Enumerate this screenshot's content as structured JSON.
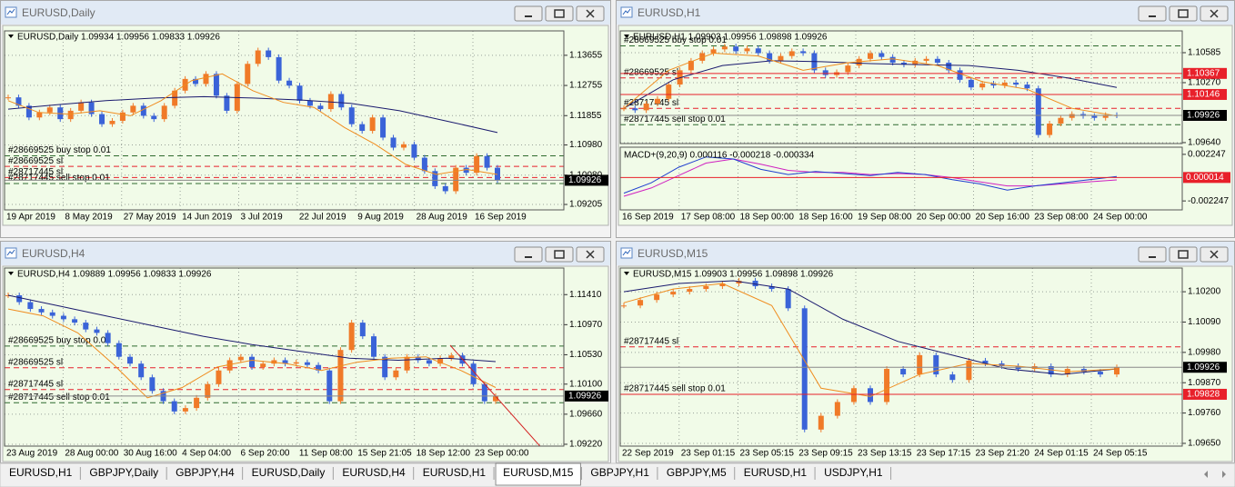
{
  "windows": [
    {
      "title": "EURUSD,Daily",
      "ohlc_label": "EURUSD,Daily  1.09934 1.09956 1.09833 1.09926",
      "up_color": "#f07a28",
      "down_color": "#3a63d8",
      "ylim": [
        1.09043,
        1.14383
      ],
      "yticks": [
        1.13655,
        1.12755,
        1.11855,
        {
          "value": 1.1098,
          "label": "1.10980"
        },
        {
          "value": 1.1008,
          "label": "1.10080"
        },
        1.09205
      ],
      "xticks": [
        "19 Apr 2019",
        "8 May 2019",
        "27 May 2019",
        "14 Jun 2019",
        "3 Jul 2019",
        "22 Jul 2019",
        "9 Aug 2019",
        "28 Aug 2019",
        "16 Sep 2019"
      ],
      "closes": [
        1.124,
        1.1215,
        1.118,
        1.1195,
        1.121,
        1.1175,
        1.12,
        1.1225,
        1.119,
        1.116,
        1.117,
        1.1195,
        1.1215,
        1.1185,
        1.1175,
        1.1215,
        1.126,
        1.1295,
        1.128,
        1.131,
        1.1245,
        1.12,
        1.128,
        1.134,
        1.138,
        1.136,
        1.129,
        1.1275,
        1.123,
        1.1215,
        1.1205,
        1.125,
        1.121,
        1.116,
        1.114,
        1.118,
        1.112,
        1.109,
        1.11,
        1.106,
        1.102,
        1.0975,
        1.096,
        1.103,
        1.1015,
        1.1065,
        1.103,
        1.09926
      ],
      "ma_fast": [
        1.123,
        1.1195,
        1.119,
        1.12,
        1.1185,
        1.123,
        1.129,
        1.131,
        1.126,
        1.1225,
        1.121,
        1.115,
        1.11,
        1.104,
        1.101,
        1.1025,
        1.101
      ],
      "ma_slow": [
        1.1205,
        1.1218,
        1.123,
        1.1238,
        1.1242,
        1.1238,
        1.1232,
        1.1222,
        1.12,
        1.1168,
        1.1135
      ],
      "orders": [
        {
          "label": "#28669525 buy stop 0.01",
          "price": 1.10657,
          "color": "#2e6b2e",
          "dashed": true
        },
        {
          "label": "#28669525 sl",
          "price": 1.1034,
          "color": "#e8202a",
          "dashed": true
        },
        {
          "label": "#28717445 sl",
          "price": 1.1001,
          "color": "#e8202a",
          "dashed": true
        },
        {
          "label": "#28717445 sell stop 0.01",
          "price": 1.09828,
          "color": "#2e6b2e",
          "dashed": true
        }
      ],
      "price_tags": [
        {
          "value": 1.09926,
          "color": "#000000"
        }
      ]
    },
    {
      "title": "EURUSD,H1",
      "ohlc_label": "EURUSD,H1  1.09903 1.09956 1.09898 1.09926",
      "up_color": "#f07a28",
      "down_color": "#3a63d8",
      "ylim": [
        1.0963,
        1.10814
      ],
      "yticks": [
        1.10585,
        {
          "value": 1.1027,
          "label": "1.10270"
        },
        {
          "value": 1.0964,
          "label": "1.09640"
        }
      ],
      "xticks": [
        "16 Sep 2019",
        "17 Sep 08:00",
        "18 Sep 00:00",
        "18 Sep 16:00",
        "19 Sep 08:00",
        "20 Sep 00:00",
        "20 Sep 16:00",
        "23 Sep 08:00",
        "24 Sep 00:00"
      ],
      "closes": [
        1.1,
        1.0998,
        1.1005,
        1.101,
        1.1025,
        1.104,
        1.105,
        1.1058,
        1.1062,
        1.1065,
        1.106,
        1.1063,
        1.1058,
        1.105,
        1.1055,
        1.106,
        1.1058,
        1.104,
        1.1035,
        1.1038,
        1.1045,
        1.1052,
        1.1058,
        1.1054,
        1.1048,
        1.1046,
        1.105,
        1.1052,
        1.1048,
        1.104,
        1.103,
        1.1022,
        1.1026,
        1.1024,
        1.1027,
        1.1025,
        1.1021,
        1.0972,
        1.0984,
        1.099,
        1.0994,
        1.0992,
        1.099,
        1.0993,
        1.09926
      ],
      "ma_fast": [
        1.1,
        1.104,
        1.1058,
        1.1055,
        1.104,
        1.1048,
        1.1052,
        1.1045,
        1.1028,
        1.102,
        1.1,
        1.0992
      ],
      "ma_slow": [
        1.1,
        1.103,
        1.1045,
        1.105,
        1.1049,
        1.1047,
        1.1046,
        1.1045,
        1.104,
        1.1032,
        1.1022
      ],
      "orders": [
        {
          "label": "#28669525 buy stop 0.01",
          "price": 1.10657,
          "color": "#2e6b2e",
          "dashed": true
        },
        {
          "label": "#28669525 sl",
          "price": 1.1032,
          "color": "#e8202a",
          "dashed": true
        },
        {
          "label": "#28717445 sl",
          "price": 1.1,
          "color": "#e8202a",
          "dashed": true
        },
        {
          "label": "#28717445 sell stop 0.01",
          "price": 1.09828,
          "color": "#2e6b2e",
          "dashed": true
        }
      ],
      "price_tags": [
        {
          "value": 1.10367,
          "color": "#e8202a"
        },
        {
          "value": 1.10146,
          "color": "#e8202a"
        },
        {
          "value": 1.09926,
          "color": "#000000"
        }
      ],
      "macd": {
        "label": "MACD+(9,20,9) 0.000116 -0.000218 -0.000334",
        "ylim": [
          -0.003111,
          0.002938
        ],
        "yticks": [
          0.002247,
          -0.002247
        ],
        "main_color": "#1f3fcf",
        "signal_color": "#d020c0",
        "main": [
          -0.0015,
          -0.0005,
          0.001,
          0.002,
          0.0018,
          0.0008,
          0.0003,
          0.0006,
          0.0004,
          0.0002,
          0.0005,
          0.0003,
          -0.0002,
          -0.0006,
          -0.0012,
          -0.0008,
          -0.0005,
          -0.0002,
          0.000116
        ],
        "signal": [
          -0.0018,
          -0.001,
          0.0002,
          0.0014,
          0.0018,
          0.0013,
          0.0007,
          0.0005,
          0.0005,
          0.0003,
          0.0004,
          0.0003,
          0.0,
          -0.0004,
          -0.0008,
          -0.0008,
          -0.0006,
          -0.0004,
          -0.000218
        ],
        "price_tags": [
          {
            "value": 1.4e-05,
            "color": "#e8202a"
          }
        ]
      }
    },
    {
      "title": "EURUSD,H4",
      "ohlc_label": "EURUSD,H4  1.09889 1.09956 1.09833 1.09926",
      "up_color": "#f07a28",
      "down_color": "#3a63d8",
      "ylim": [
        1.09193,
        1.11799
      ],
      "yticks": [
        {
          "value": 1.1141,
          "label": "1.11410"
        },
        {
          "value": 1.1097,
          "label": "1.10970"
        },
        {
          "value": 1.1053,
          "label": "1.10530"
        },
        {
          "value": 1.101,
          "label": "1.10100"
        },
        {
          "value": 1.0966,
          "label": "1.09660"
        },
        {
          "value": 1.0922,
          "label": "1.09220"
        }
      ],
      "xticks": [
        "23 Aug 2019",
        "28 Aug 00:00",
        "30 Aug 16:00",
        "4 Sep 04:00",
        "6 Sep 20:00",
        "11 Sep 08:00",
        "15 Sep 21:05",
        "18 Sep 12:00",
        "23 Sep 00:00"
      ],
      "closes": [
        1.114,
        1.113,
        1.112,
        1.1115,
        1.111,
        1.1105,
        1.11,
        1.109,
        1.1085,
        1.107,
        1.105,
        1.104,
        1.102,
        1.1,
        1.0985,
        1.097,
        1.0975,
        1.099,
        1.101,
        1.103,
        1.1045,
        1.105,
        1.1035,
        1.104,
        1.1045,
        1.104,
        1.1042,
        1.1038,
        1.103,
        1.0985,
        1.106,
        1.11,
        1.108,
        1.105,
        1.102,
        1.103,
        1.105,
        1.1045,
        1.104,
        1.1048,
        1.1052,
        1.104,
        1.101,
        1.0985,
        1.09926
      ],
      "ma_fast": [
        1.112,
        1.111,
        1.1085,
        1.104,
        1.099,
        1.1005,
        1.1035,
        1.1045,
        1.104,
        1.103,
        1.1042,
        1.1048,
        1.105,
        1.103,
        1.1005
      ],
      "ma_slow": [
        1.114,
        1.1125,
        1.111,
        1.1095,
        1.108,
        1.1068,
        1.1058,
        1.1048,
        1.1045,
        1.1048,
        1.1043
      ],
      "orders": [
        {
          "label": "#28669525 buy stop 0.01",
          "price": 1.10657,
          "color": "#2e6b2e",
          "dashed": true
        },
        {
          "label": "#28669525 sl",
          "price": 1.1034,
          "color": "#e8202a",
          "dashed": true
        },
        {
          "label": "#28717445 sl",
          "price": 1.1002,
          "color": "#e8202a",
          "dashed": true
        },
        {
          "label": "#28717445 sell stop 0.01",
          "price": 1.09828,
          "color": "#2e6b2e",
          "dashed": true
        }
      ],
      "price_tags": [
        {
          "value": 1.09926,
          "color": "#000000"
        }
      ]
    },
    {
      "title": "EURUSD,M15",
      "ohlc_label": "EURUSD,M15  1.09903 1.09956 1.09898 1.09926",
      "up_color": "#f07a28",
      "down_color": "#3a63d8",
      "ylim": [
        1.0964,
        1.10286
      ],
      "yticks": [
        {
          "value": 1.102,
          "label": "1.10200"
        },
        {
          "value": 1.1009,
          "label": "1.10090"
        },
        {
          "value": 1.0998,
          "label": "1.09980"
        },
        {
          "value": 1.0987,
          "label": "1.09870"
        },
        {
          "value": 1.0976,
          "label": "1.09760"
        },
        {
          "value": 1.0965,
          "label": "1.09650"
        }
      ],
      "xticks": [
        "22 Sep 2019",
        "23 Sep 01:15",
        "23 Sep 05:15",
        "23 Sep 09:15",
        "23 Sep 13:15",
        "23 Sep 17:15",
        "23 Sep 21:20",
        "24 Sep 01:15",
        "24 Sep 05:15"
      ],
      "closes": [
        1.1015,
        1.1017,
        1.1019,
        1.102,
        1.1021,
        1.1022,
        1.1023,
        1.1024,
        1.1022,
        1.1021,
        1.1014,
        1.097,
        1.0975,
        1.098,
        1.0985,
        1.098,
        1.0992,
        1.099,
        1.0997,
        1.099,
        1.0988,
        1.0995,
        1.0994,
        1.0993,
        1.0992,
        1.0993,
        1.099,
        1.0992,
        1.0991,
        1.099,
        1.09926
      ],
      "ma_fast": [
        1.1016,
        1.1021,
        1.1023,
        1.1015,
        1.0985,
        1.0982,
        1.099,
        1.0994,
        1.0993,
        1.0991,
        1.0992
      ],
      "ma_slow": [
        1.102,
        1.1023,
        1.1024,
        1.1021,
        1.101,
        1.1002,
        1.0997,
        1.0992,
        1.099,
        1.0992
      ],
      "orders": [
        {
          "label": "#28717445 sl",
          "price": 1.1,
          "color": "#e8202a",
          "dashed": true
        },
        {
          "label": "#28717445 sell stop 0.01",
          "price": 1.09828,
          "color": "#8b1a1a",
          "dashed": false
        }
      ],
      "price_tags": [
        {
          "value": 1.09926,
          "color": "#000000"
        },
        {
          "value": 1.09828,
          "color": "#e8202a"
        }
      ]
    }
  ],
  "tabs": {
    "items": [
      "EURUSD,H1",
      "GBPJPY,Daily",
      "GBPJPY,H4",
      "EURUSD,Daily",
      "EURUSD,H4",
      "EURUSD,H1",
      "EURUSD,M15",
      "GBPJPY,H1",
      "GBPJPY,M5",
      "EURUSD,H1",
      "USDJPY,H1"
    ],
    "active": 6
  }
}
